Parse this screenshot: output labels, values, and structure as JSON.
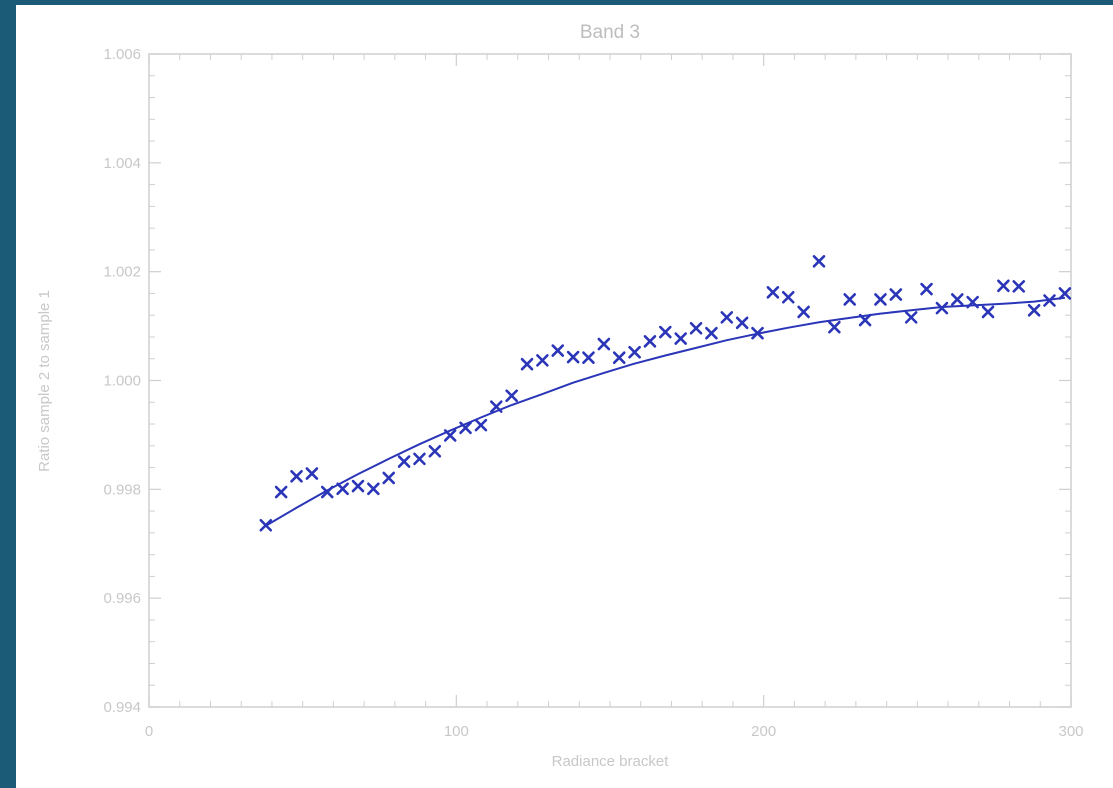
{
  "colors": {
    "background": "#1b5b78",
    "panel": "#ffffff",
    "axis": "#cfcfcf",
    "text": "#c8c8c8",
    "series": "#2a35b8"
  },
  "chart_data": {
    "type": "scatter",
    "title": "Band 3",
    "xlabel": "Radiance bracket",
    "ylabel": "Ratio sample 2 to sample 1",
    "xlim": [
      0,
      300
    ],
    "ylim": [
      0.994,
      1.006
    ],
    "xticks": [
      0,
      100,
      200,
      300
    ],
    "xtick_labels": [
      "0",
      "100",
      "200",
      "300"
    ],
    "yticks": [
      0.994,
      0.996,
      0.998,
      1.0,
      1.002,
      1.004,
      1.006
    ],
    "ytick_labels": [
      "0.994",
      "0.996",
      "0.998",
      "1.000",
      "1.002",
      "1.004",
      "1.006"
    ],
    "grid": false,
    "legend": "none",
    "series": [
      {
        "marker": "x",
        "x": [
          38,
          43,
          48,
          53,
          58,
          63,
          68,
          73,
          78,
          83,
          88,
          93,
          98,
          103,
          108,
          113,
          118,
          123,
          128,
          133,
          138,
          143,
          148,
          153,
          158,
          163,
          168,
          173,
          178,
          183,
          188,
          193,
          198,
          203,
          208,
          213,
          218,
          223,
          228,
          233,
          238,
          243,
          248,
          253,
          258,
          263,
          268,
          273,
          278,
          283,
          288,
          293,
          298
        ],
        "y": [
          0.99734,
          0.99795,
          0.99824,
          0.99829,
          0.99795,
          0.99801,
          0.99806,
          0.99801,
          0.99821,
          0.99851,
          0.99856,
          0.9987,
          0.99899,
          0.99913,
          0.99918,
          0.99952,
          0.99972,
          1.0003,
          1.00037,
          1.00055,
          1.00043,
          1.00042,
          1.00067,
          1.00042,
          1.00052,
          1.00072,
          1.00089,
          1.00077,
          1.00096,
          1.00087,
          1.00116,
          1.00106,
          1.00087,
          1.00162,
          1.00153,
          1.00126,
          1.00219,
          1.00098,
          1.00149,
          1.00111,
          1.00149,
          1.00158,
          1.00116,
          1.00168,
          1.00133,
          1.00149,
          1.00144,
          1.00126,
          1.00174,
          1.00173,
          1.00129,
          1.00147,
          1.0016
        ]
      },
      {
        "type": "line",
        "x": [
          38,
          48,
          58,
          68,
          78,
          88,
          98,
          108,
          118,
          128,
          138,
          148,
          158,
          168,
          178,
          188,
          198,
          208,
          218,
          228,
          238,
          248,
          258,
          268,
          278,
          288,
          298
        ],
        "y": [
          0.99733,
          0.99766,
          0.99798,
          0.99828,
          0.99856,
          0.99883,
          0.99908,
          0.99932,
          0.99955,
          0.99975,
          0.99996,
          1.00014,
          1.00031,
          1.00046,
          1.0006,
          1.00074,
          1.00086,
          1.00097,
          1.00107,
          1.00115,
          1.00123,
          1.00129,
          1.00135,
          1.00138,
          1.00141,
          1.00145,
          1.00152
        ]
      }
    ]
  }
}
